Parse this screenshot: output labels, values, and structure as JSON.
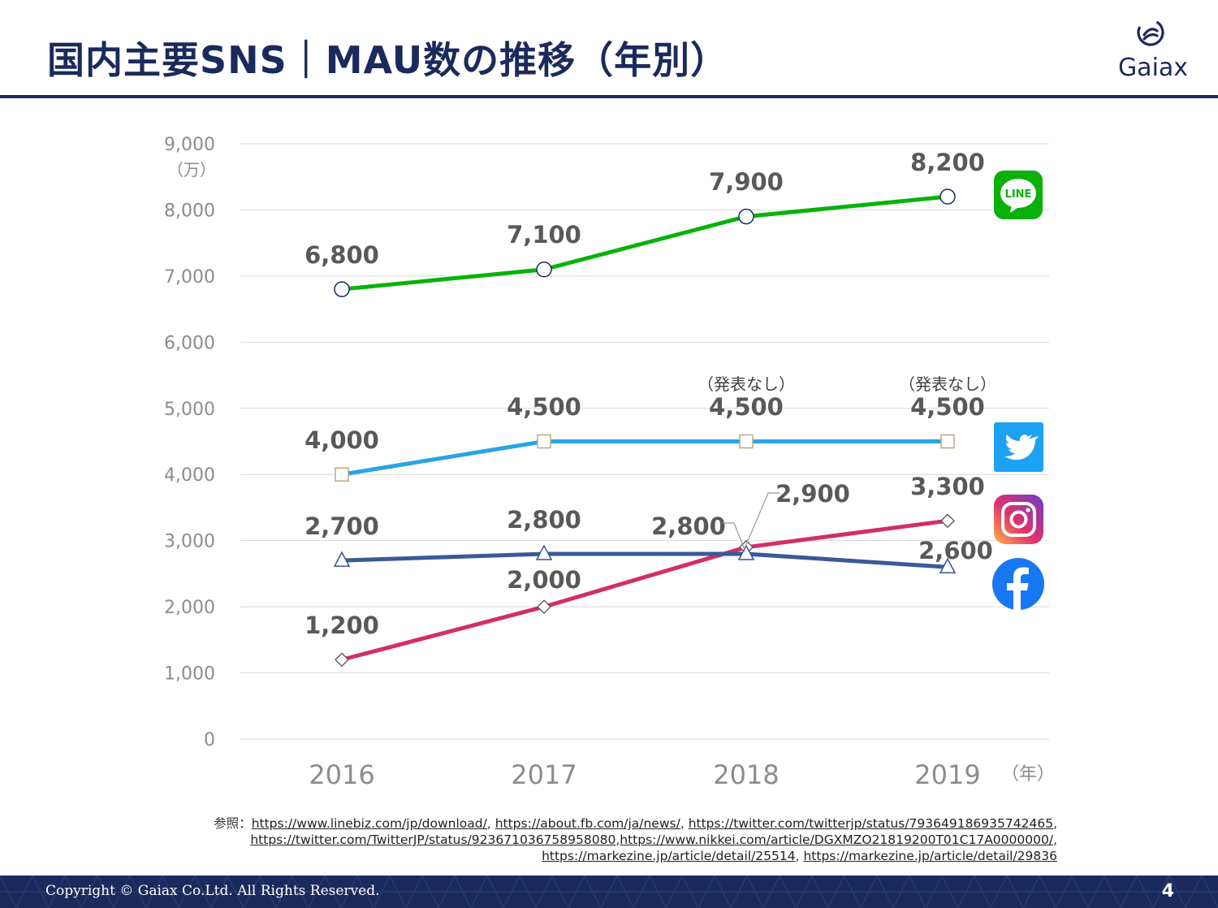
{
  "header": {
    "title": "国内主要SNS｜MAU数の推移（年別）",
    "brand": "Gaiax"
  },
  "colors": {
    "navy": "#1b2a5c",
    "line": "#0ab10a",
    "twitter": "#2aa3e3",
    "facebook": "#3b5998",
    "instagram": "#d12e6b"
  },
  "chart_data": {
    "type": "line",
    "categories": [
      "2016",
      "2017",
      "2018",
      "2019"
    ],
    "unit_label": "（万）",
    "x_unit_label": "（年）",
    "ylim": [
      0,
      9000
    ],
    "yticks": [
      "0",
      "1,000",
      "2,000",
      "3,000",
      "4,000",
      "5,000",
      "6,000",
      "7,000",
      "8,000",
      "9,000"
    ],
    "grid": true,
    "series": [
      {
        "key": "line",
        "marker": "circle",
        "values": [
          6800,
          7100,
          7900,
          8200
        ],
        "labels": [
          "6,800",
          "7,100",
          "7,900",
          "8,200"
        ],
        "icon": "line-logo-icon"
      },
      {
        "key": "twitter",
        "marker": "square",
        "values": [
          4000,
          4500,
          4500,
          4500
        ],
        "labels": [
          "4,000",
          "4,500",
          "4,500",
          "4,500"
        ],
        "icon": "twitter-logo-icon"
      },
      {
        "key": "instagram",
        "marker": "diamond",
        "values": [
          1200,
          2000,
          2900,
          3300
        ],
        "labels": [
          "1,200",
          "2,000",
          "2,900",
          "3,300"
        ],
        "icon": "instagram-logo-icon"
      },
      {
        "key": "facebook",
        "marker": "triangle",
        "values": [
          2700,
          2800,
          2800,
          2600
        ],
        "labels": [
          "2,700",
          "2,800",
          "2,800",
          "2,600"
        ],
        "icon": "facebook-logo-icon"
      }
    ],
    "annotations": [
      "（発表なし）",
      "（発表なし）"
    ]
  },
  "logo_text": {
    "line": "LINE"
  },
  "references": {
    "prefix": "参照：",
    "links": [
      "https://www.linebiz.com/jp/download/",
      "https://about.fb.com/ja/news/",
      "https://twitter.com/twitterjp/status/793649186935742465",
      "https://twitter.com/TwitterJP/status/923671036758958080",
      "https://www.nikkei.com/article/DGXMZO21819200T01C17A0000000/",
      "https://markezine.jp/article/detail/25514",
      "https://markezine.jp/article/detail/29836"
    ]
  },
  "footer": {
    "copyright": "Copyright © Gaiax Co.Ltd. All Rights Reserved.",
    "page": "4"
  }
}
